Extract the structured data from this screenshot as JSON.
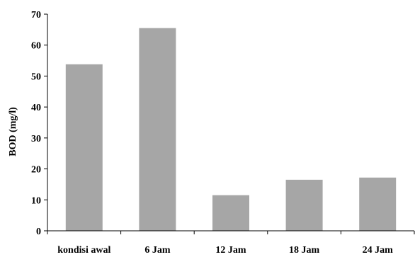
{
  "chart_data": {
    "type": "bar",
    "title": "",
    "xlabel": "",
    "ylabel": "BOD (mg/l)",
    "categories": [
      "kondisi awal",
      "6 Jam",
      "12 Jam",
      "18 Jam",
      "24 Jam"
    ],
    "values": [
      53.8,
      65.5,
      11.5,
      16.5,
      17.2
    ],
    "ylim": [
      0,
      70
    ],
    "yticks": [
      0,
      10,
      20,
      30,
      40,
      50,
      60,
      70
    ],
    "grid": false,
    "legend": "none",
    "bar_color": "#a6a6a6",
    "axis_color": "#000000"
  }
}
